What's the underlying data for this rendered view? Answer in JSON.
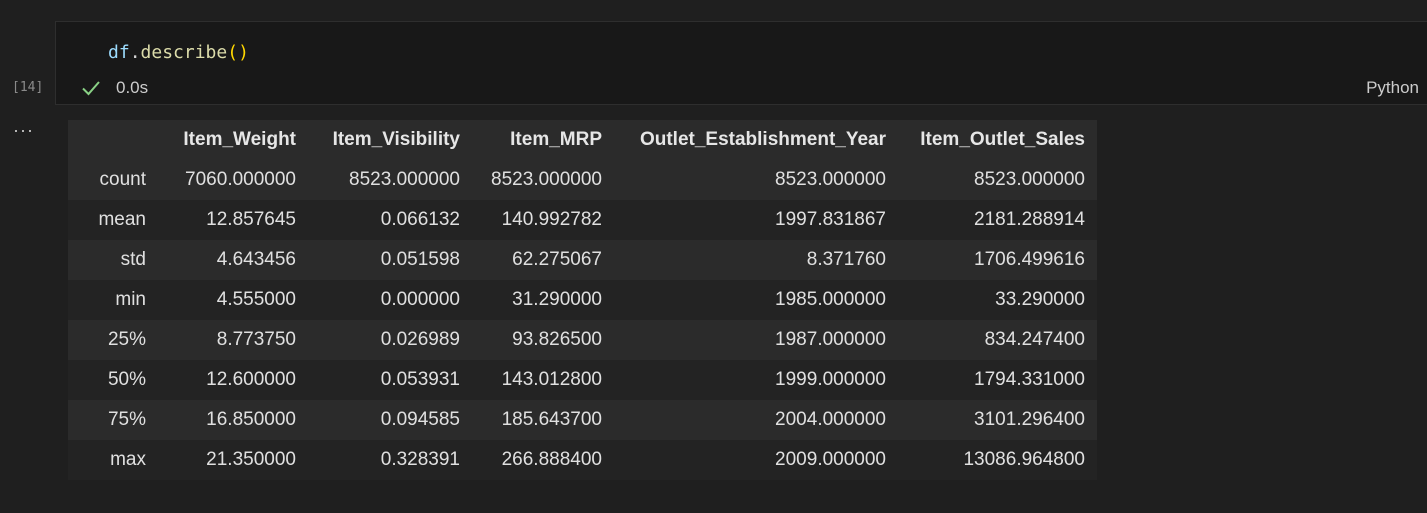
{
  "cell": {
    "execution_count": "[14]",
    "code": {
      "var": "df",
      "dot": ".",
      "fn": "describe",
      "parens": "()"
    },
    "status_time": "0.0s",
    "language": "Python"
  },
  "output": {
    "columns": [
      "",
      "Item_Weight",
      "Item_Visibility",
      "Item_MRP",
      "Outlet_Establishment_Year",
      "Item_Outlet_Sales"
    ],
    "rows": [
      {
        "label": "count",
        "values": [
          "7060.000000",
          "8523.000000",
          "8523.000000",
          "8523.000000",
          "8523.000000"
        ]
      },
      {
        "label": "mean",
        "values": [
          "12.857645",
          "0.066132",
          "140.992782",
          "1997.831867",
          "2181.288914"
        ]
      },
      {
        "label": "std",
        "values": [
          "4.643456",
          "0.051598",
          "62.275067",
          "8.371760",
          "1706.499616"
        ]
      },
      {
        "label": "min",
        "values": [
          "4.555000",
          "0.000000",
          "31.290000",
          "1985.000000",
          "33.290000"
        ]
      },
      {
        "label": "25%",
        "values": [
          "8.773750",
          "0.026989",
          "93.826500",
          "1987.000000",
          "834.247400"
        ]
      },
      {
        "label": "50%",
        "values": [
          "12.600000",
          "0.053931",
          "143.012800",
          "1999.000000",
          "1794.331000"
        ]
      },
      {
        "label": "75%",
        "values": [
          "16.850000",
          "0.094585",
          "185.643700",
          "2004.000000",
          "3101.296400"
        ]
      },
      {
        "label": "max",
        "values": [
          "21.350000",
          "0.328391",
          "266.888400",
          "2009.000000",
          "13086.964800"
        ]
      }
    ]
  },
  "icons": {
    "check": "check-icon",
    "more": "more-icon"
  },
  "colors": {
    "check": "#89d185",
    "paren": "#ffd700",
    "function": "#dcdcaa",
    "variable": "#9cdcfe"
  }
}
